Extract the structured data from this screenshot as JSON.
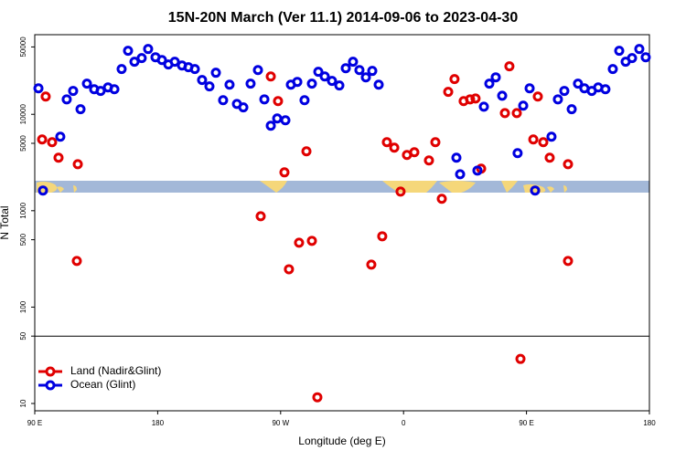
{
  "chart_data": {
    "type": "scatter",
    "title": "15N-20N March (Ver 11.1)   2014-09-06 to 2023-04-30",
    "x_label": "Longitude (deg E)",
    "y_label": "N Total",
    "xlim": [
      90,
      540
    ],
    "xticks": [
      {
        "value": 90,
        "label": "90 E"
      },
      180,
      {
        "value": 270,
        "label": "90 W"
      },
      {
        "value": 360,
        "label": "0"
      },
      {
        "value": 450,
        "label": "90 E"
      },
      {
        "value": 540,
        "label": "180"
      }
    ],
    "ylim": [
      8.4,
      67000
    ],
    "log_y": true,
    "yticks": [
      10,
      50,
      100,
      500,
      1000,
      5000,
      10000,
      50000
    ],
    "hline": 50,
    "legend": "bottom-left",
    "series": [
      {
        "name": "Land (Nadir&Glint)",
        "color": "#e00000",
        "x": [
          95.4,
          98.0,
          102.7,
          107.4,
          121.5,
          120.8,
          262.8,
          268.1,
          272.8,
          255.4,
          276.1,
          283.5,
          288.9,
          292.9,
          296.9,
          336.4,
          344.4,
          347.8,
          353.2,
          357.8,
          362.5,
          367.9,
          378.6,
          383.3,
          388.0,
          392.7,
          397.3,
          404.0,
          408.7,
          412.7,
          416.8,
          434.2,
          437.5,
          442.9,
          445.6,
          455.0,
          458.3,
          462.3,
          467.0,
          480.4,
          480.4
        ],
        "values": [
          5490,
          15300,
          5140,
          3550,
          3040,
          301,
          24700,
          13700,
          2500,
          877,
          247,
          466,
          4130,
          487,
          11.6,
          276,
          543,
          5140,
          4510,
          1580,
          3790,
          4040,
          3320,
          5140,
          1330,
          17100,
          23200,
          13700,
          14300,
          14600,
          2730,
          10300,
          31500,
          10300,
          29,
          5490,
          15300,
          5140,
          3550,
          3040,
          301
        ]
      },
      {
        "name": "Ocean (Glint)",
        "color": "#0000e0",
        "x": [
          92.7,
          96.0,
          108.7,
          113.4,
          118.1,
          123.5,
          128.2,
          133.5,
          138.2,
          143.6,
          148.3,
          153.6,
          158.3,
          163.0,
          168.3,
          173.0,
          178.4,
          183.1,
          187.8,
          192.5,
          197.8,
          202.5,
          207.2,
          212.5,
          217.9,
          222.6,
          227.9,
          232.6,
          238.0,
          242.7,
          248.0,
          253.4,
          258.1,
          262.8,
          267.5,
          273.5,
          277.5,
          282.2,
          287.5,
          292.9,
          297.6,
          302.3,
          307.6,
          313.0,
          317.7,
          323.0,
          327.7,
          332.4,
          337.1,
          341.8,
          398.7,
          401.4,
          414.1,
          418.8,
          422.8,
          427.5,
          432.2,
          443.5,
          447.6,
          452.3,
          456.3,
          468.3,
          473.0,
          477.7,
          483.1,
          487.7,
          492.4,
          497.8,
          502.5,
          507.8,
          513.2,
          517.9,
          522.6,
          527.3,
          532.6,
          537.3
        ],
        "values": [
          18600,
          1620,
          5860,
          14300,
          17500,
          11300,
          20800,
          18200,
          17500,
          19000,
          18200,
          29500,
          45600,
          35100,
          38300,
          47600,
          39100,
          36600,
          32900,
          35100,
          32100,
          30800,
          29500,
          22700,
          19500,
          27000,
          14000,
          20300,
          12800,
          11800,
          20800,
          28800,
          14300,
          7620,
          9060,
          8670,
          20300,
          21700,
          14000,
          20800,
          27600,
          24700,
          22200,
          19900,
          30100,
          35100,
          28800,
          24200,
          28200,
          20300,
          3550,
          2390,
          2610,
          12000,
          20800,
          24200,
          15600,
          3960,
          12300,
          18600,
          1620,
          5860,
          14300,
          17500,
          11300,
          20800,
          18600,
          17500,
          19000,
          18200,
          29500,
          45600,
          35100,
          38300,
          47600,
          39100
        ]
      }
    ]
  }
}
